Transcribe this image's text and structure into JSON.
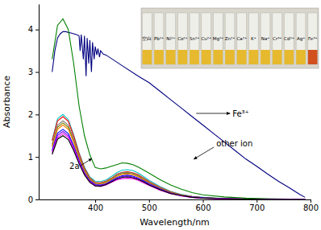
{
  "chart_data": {
    "type": "line",
    "x_label": "Wavelength/nm",
    "y_label": "Absorbance",
    "xlim": [
      295,
      800
    ],
    "xticks": [
      400,
      500,
      600,
      700,
      800
    ],
    "ylim": [
      0,
      4.6
    ],
    "yticks": [
      0,
      1,
      2,
      3,
      4
    ],
    "grid": false,
    "x": [
      320,
      330,
      340,
      350,
      360,
      370,
      380,
      390,
      400,
      410,
      420,
      430,
      440,
      450,
      460,
      470,
      480,
      490,
      500,
      520,
      540,
      560,
      580,
      600,
      640,
      680,
      720,
      760,
      790
    ],
    "series": [
      {
        "color": "#000080",
        "x": [
          320,
          325,
          330,
          335,
          340,
          345,
          350,
          355,
          360,
          365,
          370,
          372,
          374,
          378,
          380,
          383,
          385,
          388,
          390,
          393,
          395,
          398,
          400,
          403,
          405,
          408,
          410,
          415,
          420,
          450,
          480,
          500,
          520,
          540,
          560,
          580,
          600,
          620,
          640,
          660,
          680,
          700,
          720,
          740,
          760,
          780,
          790
        ],
        "values": [
          3.0,
          3.5,
          3.8,
          3.9,
          3.95,
          3.95,
          3.93,
          3.92,
          3.9,
          3.88,
          3.85,
          3.5,
          3.88,
          3.3,
          3.85,
          2.9,
          3.8,
          3.2,
          3.75,
          3.0,
          3.7,
          3.3,
          3.6,
          3.4,
          3.55,
          3.35,
          3.5,
          3.42,
          3.4,
          3.15,
          2.9,
          2.75,
          2.55,
          2.35,
          2.15,
          1.95,
          1.75,
          1.55,
          1.35,
          1.15,
          0.95,
          0.78,
          0.6,
          0.43,
          0.28,
          0.12,
          0.05
        ]
      },
      {
        "color": "#008000",
        "values": [
          3.3,
          4.1,
          4.25,
          4.0,
          3.2,
          2.2,
          1.5,
          1.05,
          0.75,
          0.72,
          0.74,
          0.78,
          0.82,
          0.86,
          0.85,
          0.82,
          0.76,
          0.69,
          0.62,
          0.47,
          0.34,
          0.24,
          0.16,
          0.11,
          0.06,
          0.03,
          0.02,
          0.01,
          0.0
        ]
      },
      {
        "color": "#00c8c8",
        "values": [
          1.4,
          1.9,
          2.0,
          1.88,
          1.52,
          1.1,
          0.76,
          0.53,
          0.43,
          0.42,
          0.46,
          0.54,
          0.63,
          0.69,
          0.7,
          0.68,
          0.62,
          0.54,
          0.45,
          0.31,
          0.19,
          0.12,
          0.07,
          0.05,
          0.02,
          0.01,
          0,
          0,
          0
        ]
      },
      {
        "color": "#ff0000",
        "values": [
          1.38,
          1.85,
          1.95,
          1.84,
          1.49,
          1.08,
          0.74,
          0.51,
          0.4,
          0.39,
          0.43,
          0.5,
          0.59,
          0.64,
          0.65,
          0.63,
          0.58,
          0.5,
          0.42,
          0.29,
          0.18,
          0.11,
          0.07,
          0.04,
          0.02,
          0.01,
          0,
          0,
          0
        ]
      },
      {
        "color": "#808080",
        "values": [
          1.3,
          1.75,
          1.85,
          1.75,
          1.42,
          1.03,
          0.71,
          0.49,
          0.39,
          0.38,
          0.42,
          0.49,
          0.58,
          0.63,
          0.64,
          0.62,
          0.57,
          0.49,
          0.41,
          0.28,
          0.17,
          0.11,
          0.06,
          0.04,
          0.02,
          0.01,
          0,
          0,
          0
        ]
      },
      {
        "color": "#808000",
        "values": [
          1.27,
          1.7,
          1.8,
          1.7,
          1.38,
          1.0,
          0.69,
          0.48,
          0.38,
          0.37,
          0.41,
          0.48,
          0.56,
          0.61,
          0.62,
          0.6,
          0.55,
          0.48,
          0.4,
          0.27,
          0.17,
          0.1,
          0.06,
          0.04,
          0.02,
          0.01,
          0,
          0,
          0
        ]
      },
      {
        "color": "#ff8000",
        "values": [
          1.23,
          1.65,
          1.75,
          1.65,
          1.34,
          0.97,
          0.67,
          0.46,
          0.37,
          0.36,
          0.39,
          0.46,
          0.54,
          0.59,
          0.6,
          0.58,
          0.53,
          0.46,
          0.39,
          0.26,
          0.16,
          0.1,
          0.06,
          0.04,
          0.02,
          0.01,
          0,
          0,
          0
        ]
      },
      {
        "color": "#0000ff",
        "values": [
          1.16,
          1.56,
          1.65,
          1.55,
          1.26,
          0.92,
          0.63,
          0.44,
          0.35,
          0.34,
          0.37,
          0.44,
          0.51,
          0.56,
          0.57,
          0.55,
          0.5,
          0.44,
          0.37,
          0.25,
          0.15,
          0.09,
          0.06,
          0.04,
          0.02,
          0.01,
          0,
          0,
          0
        ]
      },
      {
        "color": "#8000ff",
        "values": [
          1.13,
          1.51,
          1.6,
          1.5,
          1.22,
          0.89,
          0.61,
          0.42,
          0.34,
          0.33,
          0.36,
          0.42,
          0.5,
          0.54,
          0.55,
          0.53,
          0.49,
          0.42,
          0.36,
          0.24,
          0.15,
          0.09,
          0.05,
          0.03,
          0.02,
          0.01,
          0,
          0,
          0
        ]
      },
      {
        "color": "#ff00ff",
        "values": [
          1.1,
          1.46,
          1.55,
          1.46,
          1.19,
          0.86,
          0.59,
          0.41,
          0.32,
          0.31,
          0.34,
          0.4,
          0.46,
          0.49,
          0.5,
          0.49,
          0.45,
          0.39,
          0.33,
          0.22,
          0.14,
          0.08,
          0.05,
          0.03,
          0.01,
          0.01,
          0,
          0,
          0
        ]
      },
      {
        "color": "#000000",
        "values": [
          1.06,
          1.42,
          1.5,
          1.41,
          1.15,
          0.84,
          0.58,
          0.4,
          0.32,
          0.31,
          0.35,
          0.41,
          0.48,
          0.52,
          0.53,
          0.51,
          0.47,
          0.41,
          0.34,
          0.23,
          0.14,
          0.09,
          0.05,
          0.03,
          0.02,
          0.01,
          0,
          0,
          0
        ]
      }
    ],
    "annotations": [
      {
        "text": "Fe³⁺",
        "x": 655,
        "y": 1.95
      },
      {
        "text": "other ion",
        "x": 625,
        "y": 1.25
      },
      {
        "text": "2a",
        "x": 352,
        "y": 0.72
      }
    ],
    "inset": {
      "labels": [
        "空白",
        "Pb²⁺",
        "Ni²⁺",
        "Co²⁺",
        "Sn²⁺",
        "Cu²⁺",
        "Mg²⁺",
        "Zn²⁺",
        "Ca²⁺",
        "K⁺",
        "Na⁺",
        "Cr³⁺",
        "Cd²⁺",
        "Ag⁺",
        "Fe³⁺"
      ],
      "colors": [
        "#e6b92e",
        "#e6b92e",
        "#e6b92e",
        "#e6b92e",
        "#e6b92e",
        "#e6b92e",
        "#e6b92e",
        "#e6b92e",
        "#e6b92e",
        "#e6b92e",
        "#e6b92e",
        "#e6b92e",
        "#e6b92e",
        "#e6b92e",
        "#d2501e"
      ]
    }
  }
}
